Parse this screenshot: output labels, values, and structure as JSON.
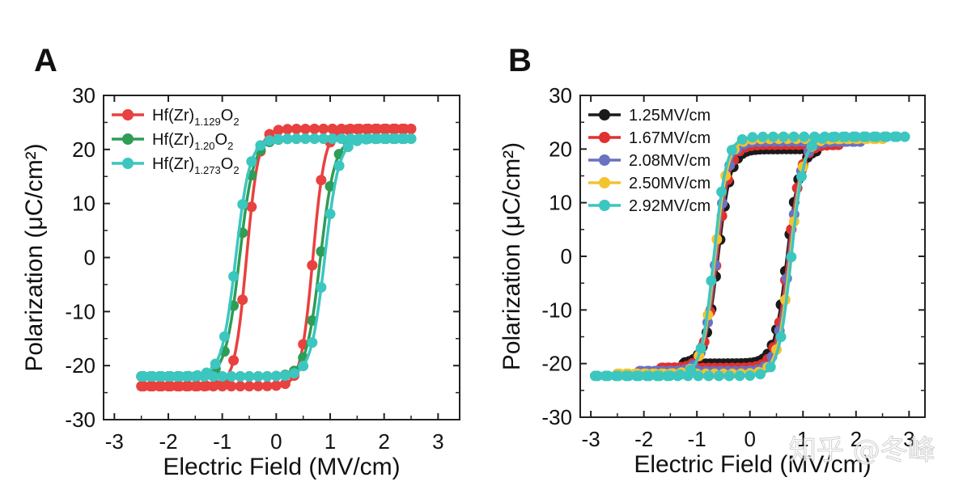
{
  "watermark": "知乎 @冬峰",
  "chart_data": [
    {
      "type": "line",
      "panel_label": "A",
      "xlabel": "Electric Field (MV/cm)",
      "ylabel": "Polarization (μC/cm²)",
      "xlim": [
        -3.2,
        3.4
      ],
      "ylim": [
        -30,
        30
      ],
      "xticks": [
        -3,
        -2,
        -1,
        0,
        1,
        2,
        3
      ],
      "yticks": [
        -30,
        -20,
        -10,
        0,
        10,
        20,
        30
      ],
      "legend_position": "top-left",
      "series": [
        {
          "name": "Hf(Zr)1.129O2",
          "base": "Hf(Zr)",
          "sub1": "1.129",
          "mid": "O",
          "sub2": "2",
          "color": "#e8413f",
          "emax": 2.5,
          "ps": 23.8,
          "ec_up": 0.68,
          "ec_down": -0.55,
          "w": 0.11
        },
        {
          "name": "Hf(Zr)1.20O2",
          "base": "Hf(Zr)",
          "sub1": "1.20",
          "mid": "O",
          "sub2": "2",
          "color": "#2e9d55",
          "emax": 2.5,
          "ps": 22.0,
          "ec_up": 0.82,
          "ec_down": -0.68,
          "w": 0.13
        },
        {
          "name": "Hf(Zr)1.273O2",
          "base": "Hf(Zr)",
          "sub1": "1.273",
          "mid": "O",
          "sub2": "2",
          "color": "#3cc6c0",
          "emax": 2.5,
          "ps": 22.0,
          "ec_up": 0.9,
          "ec_down": -0.75,
          "w": 0.13
        }
      ]
    },
    {
      "type": "line",
      "panel_label": "B",
      "xlabel": "Electric Field (MV/cm)",
      "ylabel": "Polarization (μC/cm²)",
      "xlim": [
        -3.2,
        3.3
      ],
      "ylim": [
        -30,
        30
      ],
      "xticks": [
        -3,
        -2,
        -1,
        0,
        1,
        2,
        3
      ],
      "yticks": [
        -30,
        -20,
        -10,
        0,
        10,
        20,
        30
      ],
      "legend_position": "top-left",
      "series": [
        {
          "name": "1.25MV/cm",
          "color": "#1a1a1a",
          "emax": 1.25,
          "ps": 20.0,
          "ec_up": 0.7,
          "ec_down": -0.6,
          "w": 0.12
        },
        {
          "name": "1.67MV/cm",
          "color": "#e0302f",
          "emax": 1.67,
          "ps": 20.8,
          "ec_up": 0.72,
          "ec_down": -0.62,
          "w": 0.12
        },
        {
          "name": "2.08MV/cm",
          "color": "#6a72c2",
          "emax": 2.08,
          "ps": 21.4,
          "ec_up": 0.74,
          "ec_down": -0.64,
          "w": 0.12
        },
        {
          "name": "2.50MV/cm",
          "color": "#f4c330",
          "emax": 2.5,
          "ps": 21.9,
          "ec_up": 0.76,
          "ec_down": -0.66,
          "w": 0.12
        },
        {
          "name": "2.92MV/cm",
          "color": "#3cc6c0",
          "emax": 2.92,
          "ps": 22.3,
          "ec_up": 0.78,
          "ec_down": -0.68,
          "w": 0.12
        }
      ]
    }
  ]
}
